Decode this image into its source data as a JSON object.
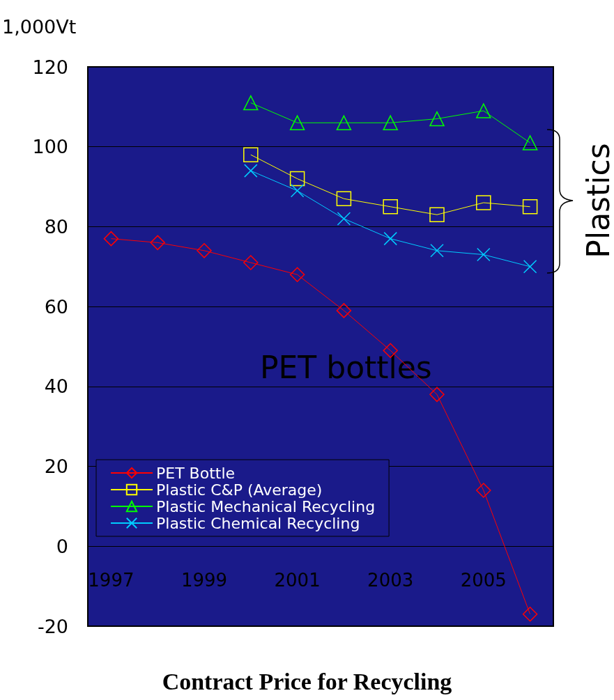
{
  "chart_data": {
    "type": "line",
    "title": "Contract Price for Recycling",
    "ylabel": "1,000Vt",
    "categories": [
      "1997",
      null,
      "1999",
      null,
      "2001",
      null,
      "2003",
      null,
      "2005",
      null
    ],
    "series": [
      {
        "name": "PET Bottle",
        "color": "#ff0000",
        "marker": "diamond",
        "values": [
          77,
          76,
          74,
          71,
          68,
          59,
          49,
          38,
          14,
          -17
        ]
      },
      {
        "name": "Plastic C&P (Average)",
        "color": "#ffff00",
        "marker": "square",
        "values": [
          null,
          null,
          null,
          98,
          92,
          87,
          85,
          83,
          86,
          85
        ]
      },
      {
        "name": "Plastic Mechanical Recycling",
        "color": "#00ff00",
        "marker": "triangle",
        "values": [
          null,
          null,
          null,
          111,
          106,
          106,
          106,
          107,
          109,
          101
        ]
      },
      {
        "name": "Plastic Chemical Recycling",
        "color": "#00ccff",
        "marker": "cross",
        "values": [
          null,
          null,
          null,
          94,
          89,
          82,
          77,
          74,
          73,
          70
        ]
      }
    ],
    "ylim": [
      -20,
      120
    ],
    "yticks": [
      -20,
      0,
      20,
      40,
      60,
      80,
      100,
      120
    ],
    "grid": "y",
    "legend": "bottom left",
    "annotations": [
      "PET bottles",
      "Plastics"
    ]
  }
}
